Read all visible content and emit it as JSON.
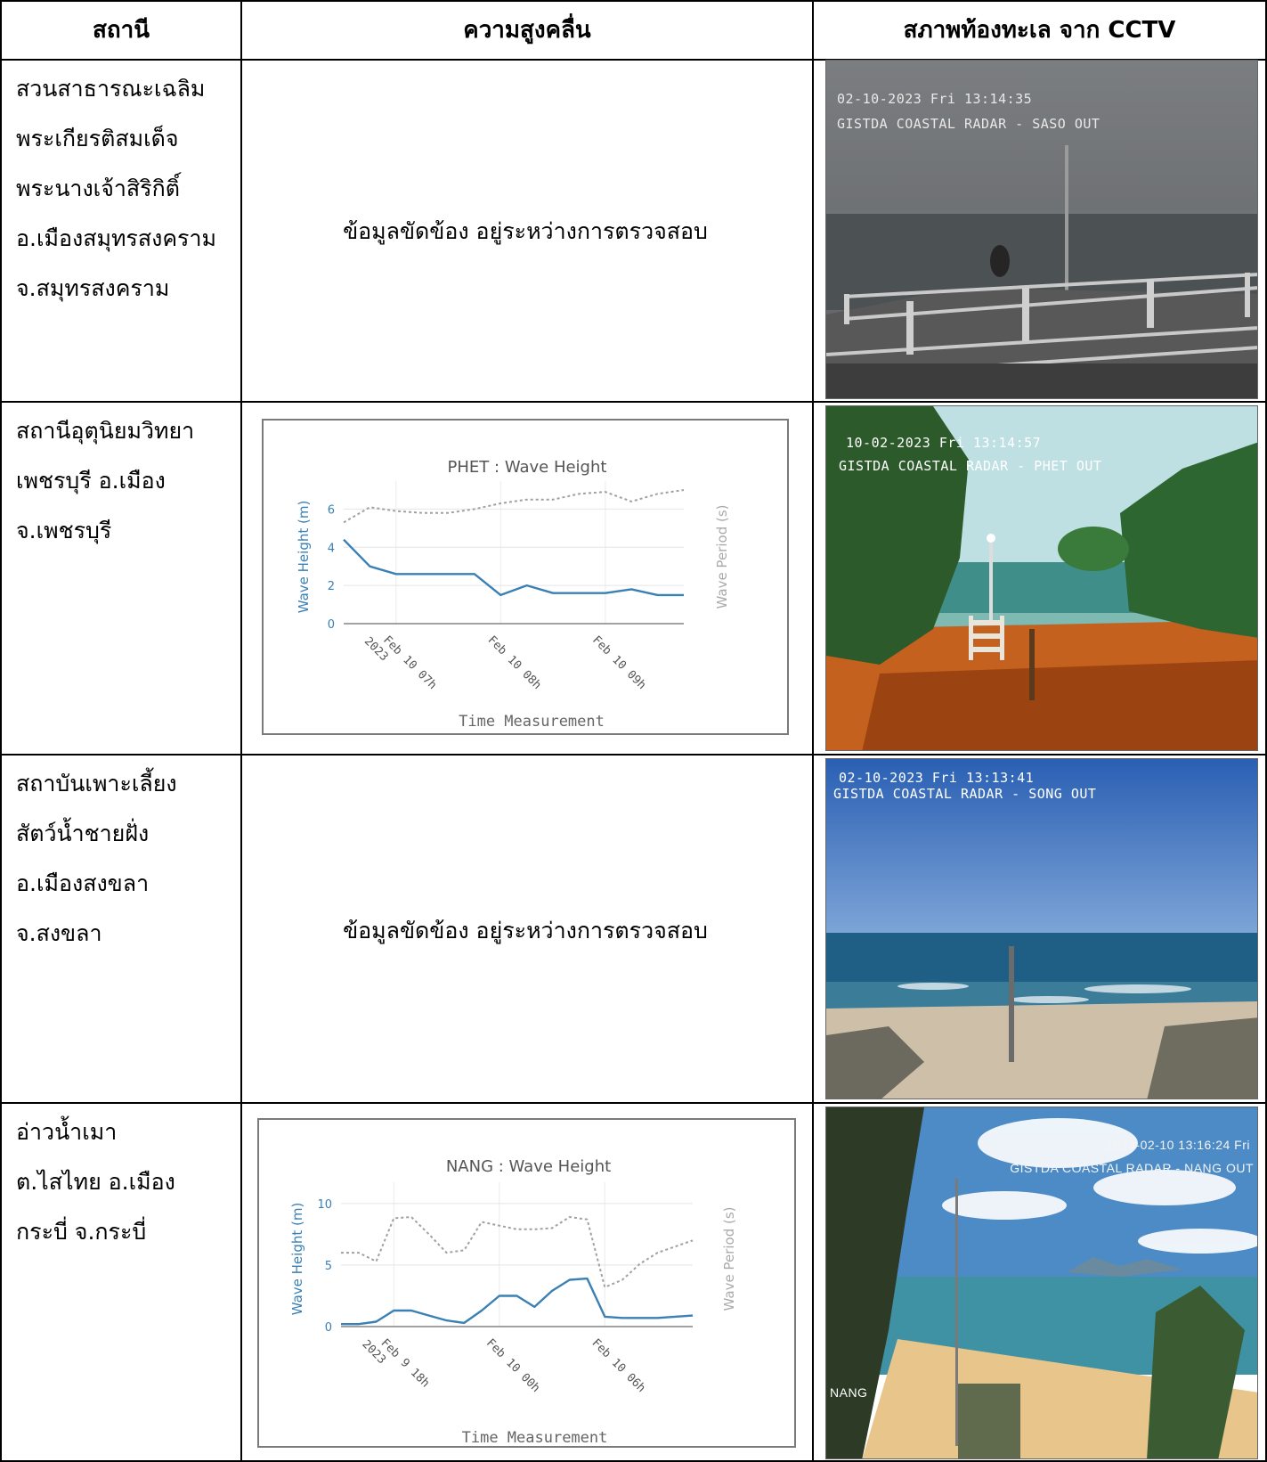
{
  "headers": {
    "station": "สถานี",
    "wave": "ความสูงคลื่น",
    "cctv": "สภาพท้องทะเล จาก CCTV"
  },
  "rows": [
    {
      "station_lines": [
        "สวนสาธารณะเฉลิม",
        "พระเกียรติสมเด็จ",
        "พระนางเจ้าสิริกิติ์",
        "อ.เมืองสมุทรสงคราม",
        "จ.สมุทรสงคราม"
      ],
      "status": "ข้อมูลขัดข้อง อยู่ระหว่างการตรวจสอบ",
      "cam_osd": [
        "02-10-2023 Fri 13:14:35",
        "GISTDA COASTAL RADAR - SASO OUT"
      ]
    },
    {
      "station_lines": [
        "สถานีอุตุนิยมวิทยา",
        "เพชรบุรี อ.เมือง",
        "จ.เพชรบุรี"
      ],
      "cam_osd": [
        "10-02-2023 Fri 13:14:57",
        "GISTDA COASTAL RADAR - PHET OUT"
      ]
    },
    {
      "station_lines": [
        "สถาบันเพาะเลี้ยง",
        "สัตว์น้ำชายฝั่ง",
        "อ.เมืองสงขลา",
        "จ.สงขลา"
      ],
      "status": "ข้อมูลขัดข้อง อยู่ระหว่างการตรวจสอบ",
      "cam_osd": [
        "02-10-2023 Fri 13:13:41",
        "GISTDA COASTAL RADAR - SONG OUT"
      ]
    },
    {
      "station_lines": [
        "อ่าวน้ำเมา",
        "ต.ไสไทย  อ.เมือง",
        "กระบี่ จ.กระบี่"
      ],
      "cam_osd": [
        "2023-02-10 13:16:24 Fri",
        "GISTDA COASTAL RADAR - NANG OUT"
      ],
      "cam_corner": "NANG"
    }
  ],
  "chart_data": [
    {
      "type": "line",
      "title": "PHET : Wave Height",
      "xlabel": "Time Measurement",
      "ylabel": "Wave Height (m)",
      "y2label": "Wave Period (s)",
      "x": [
        6.5,
        6.75,
        7.0,
        7.25,
        7.5,
        7.75,
        8.0,
        8.25,
        8.5,
        8.75,
        9.0,
        9.25,
        9.5,
        9.75
      ],
      "x_ticks": [
        {
          "at": 7.0,
          "lines": [
            "Feb 10 07h",
            "2023"
          ]
        },
        {
          "at": 8.0,
          "lines": [
            "Feb 10 08h"
          ]
        },
        {
          "at": 9.0,
          "lines": [
            "Feb 10 09h"
          ]
        }
      ],
      "xlim": [
        6.5,
        9.75
      ],
      "ylim": [
        0,
        7
      ],
      "y_ticks": [
        0,
        2,
        4,
        6
      ],
      "series": [
        {
          "kind": "height",
          "color": "#3a80b4",
          "values": [
            4.4,
            3.0,
            2.6,
            2.6,
            2.6,
            2.6,
            1.5,
            2.0,
            1.6,
            1.6,
            1.6,
            1.8,
            1.5,
            1.5
          ]
        },
        {
          "kind": "period",
          "color": "#a0a0a0",
          "values": [
            5.3,
            6.1,
            5.9,
            5.8,
            5.8,
            6.0,
            6.3,
            6.5,
            6.5,
            6.8,
            6.9,
            6.4,
            6.8,
            7.0
          ]
        }
      ]
    },
    {
      "type": "line",
      "title": "NANG : Wave Height",
      "xlabel": "Time Measurement",
      "ylabel": "Wave Height (m)",
      "y2label": "Wave Period (s)",
      "x": [
        15,
        16,
        17,
        18,
        19,
        20,
        21,
        22,
        23,
        24,
        25,
        26,
        27,
        28,
        29,
        30,
        31,
        32,
        33,
        34,
        35
      ],
      "x_ticks": [
        {
          "at": 18,
          "lines": [
            "Feb 9 18h",
            "2023"
          ]
        },
        {
          "at": 24,
          "lines": [
            "Feb 10 00h"
          ]
        },
        {
          "at": 30,
          "lines": [
            "Feb 10 06h"
          ]
        }
      ],
      "xlim": [
        15,
        35
      ],
      "ylim": [
        0,
        11
      ],
      "y_ticks": [
        0,
        5,
        10
      ],
      "series": [
        {
          "kind": "height",
          "color": "#3a80b4",
          "values": [
            0.2,
            0.2,
            0.4,
            1.3,
            1.3,
            0.9,
            0.5,
            0.3,
            1.3,
            2.5,
            2.5,
            1.6,
            2.9,
            3.8,
            3.9,
            0.8,
            0.7,
            0.7,
            0.7,
            0.8,
            0.9
          ]
        },
        {
          "kind": "period",
          "color": "#a0a0a0",
          "values": [
            6.0,
            6.0,
            5.3,
            8.8,
            8.9,
            7.5,
            6.0,
            6.2,
            8.5,
            8.2,
            7.9,
            7.9,
            8.0,
            8.9,
            8.7,
            3.2,
            3.8,
            5.1,
            6.0,
            6.5,
            7.0
          ]
        }
      ]
    }
  ]
}
